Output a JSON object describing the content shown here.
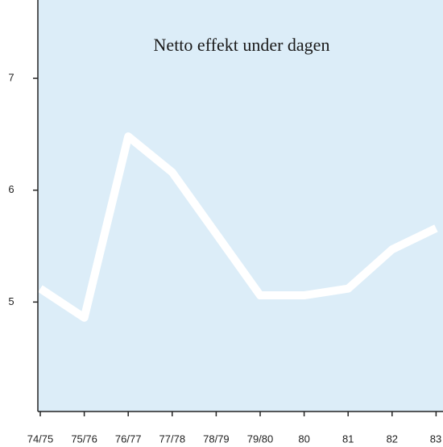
{
  "chart_data": {
    "type": "line",
    "title": "Netto effekt under dagen",
    "categories": [
      "74/75",
      "75/76",
      "76/77",
      "77/78",
      "78/79",
      "79/80",
      "80",
      "81",
      "82",
      "83"
    ],
    "series": [
      {
        "color": "#ffffff",
        "values": [
          5.12,
          4.86,
          6.48,
          6.16,
          5.61,
          5.06,
          5.06,
          5.12,
          5.47,
          5.66
        ]
      }
    ],
    "ylim": [
      4,
      7.7
    ],
    "yticks": [
      5,
      6,
      7
    ],
    "background": "#dcedf8"
  }
}
